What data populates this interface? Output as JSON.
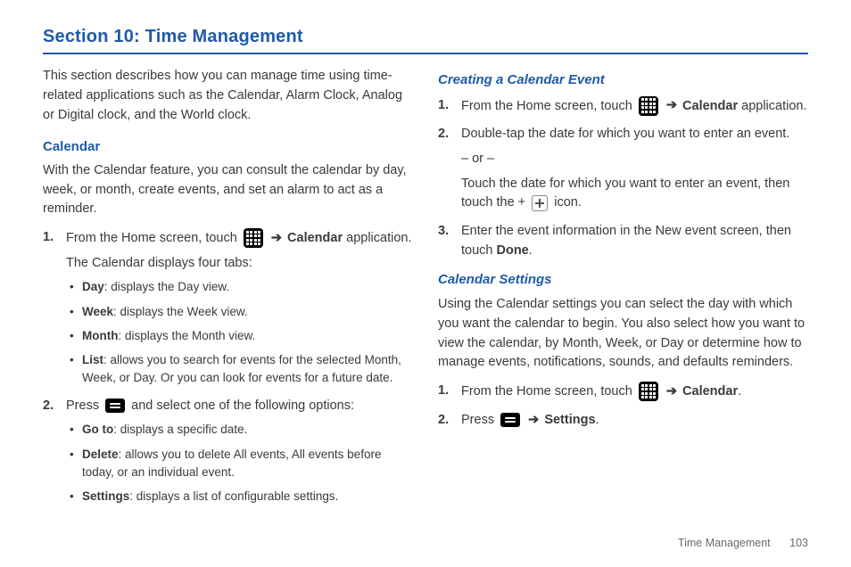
{
  "section_title": "Section 10: Time Management",
  "left": {
    "intro": "This section describes how you can manage time using time-related applications such as the Calendar, Alarm Clock, Analog or Digital clock, and the World clock.",
    "calendar_heading": "Calendar",
    "calendar_intro": "With the Calendar feature, you can consult the calendar by day, week, or month, create events, and set an alarm to act as a reminder.",
    "step1_pre": "From the Home screen, touch ",
    "arrow": "➔",
    "step1_bold": "Calendar",
    "step1_post": " application.",
    "step1_sub": "The Calendar displays four tabs:",
    "tabs": {
      "day_b": "Day",
      "day": ": displays the Day view.",
      "week_b": "Week",
      "week": ": displays the Week view.",
      "month_b": "Month",
      "month": ": displays the Month view.",
      "list_b": "List",
      "list": ": allows you to search for events for the selected Month, Week, or Day. Or you can look for events for a future date."
    },
    "step2_pre": "Press ",
    "step2_post": " and select one of the following options:",
    "opts": {
      "goto_b": "Go to",
      "goto": ": displays a specific date.",
      "delete_b": "Delete",
      "delete": ": allows you to delete All events, All events before today, or an individual event.",
      "settings_b": "Settings",
      "settings": ": displays a list of configurable settings."
    }
  },
  "right": {
    "create_heading": "Creating a Calendar Event",
    "c_step1_pre": "From the Home screen, touch ",
    "arrow": "➔",
    "c_step1_bold": "Calendar",
    "c_step1_post": " application.",
    "c_step2a": "Double-tap the date for which you want to enter an event.",
    "c_step2_or": "– or –",
    "c_step2b_pre": "Touch the date for which you want to enter an event, then touch the + ",
    "c_step2b_post": " icon.",
    "c_step3_pre": "Enter the event information in the New event screen, then touch ",
    "c_step3_bold": "Done",
    "c_step3_post": ".",
    "settings_heading": "Calendar Settings",
    "settings_intro": "Using the Calendar settings you can select the day with which you want the calendar to begin. You also select how you want to view the calendar, by Month, Week, or Day or determine how to manage events, notifications, sounds, and defaults reminders.",
    "s_step1_pre": "From the Home screen, touch ",
    "s_step1_bold": "Calendar",
    "s_step1_post": ".",
    "s_step2_pre": "Press ",
    "s_step2_bold": "Settings",
    "s_step2_post": "."
  },
  "footer": {
    "title": "Time Management",
    "page": "103"
  },
  "colors": {
    "accent": "#1e5aa8",
    "text": "#3a3a3a",
    "footer": "#6a6a6a"
  }
}
